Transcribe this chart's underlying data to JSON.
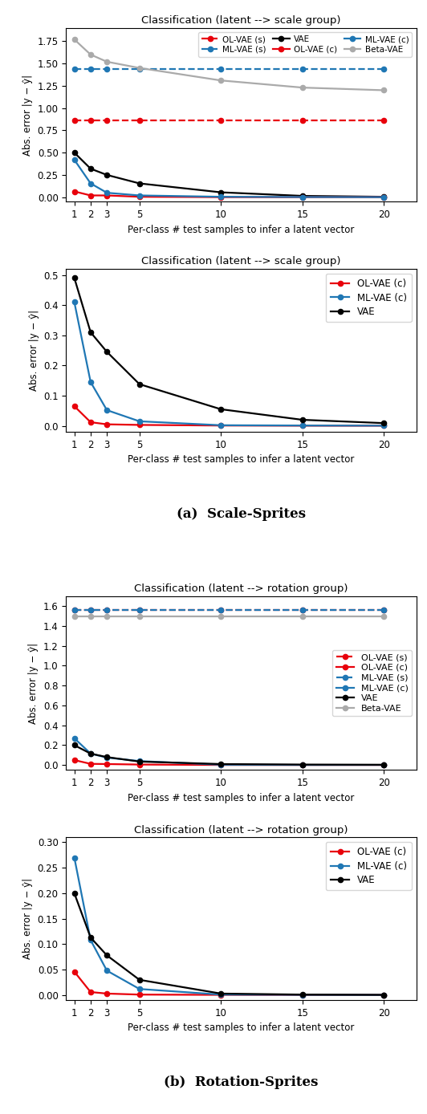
{
  "x": [
    1,
    2,
    3,
    5,
    10,
    15,
    20
  ],
  "plot1": {
    "title": "Classification (latent --> scale group)",
    "ylabel": "Abs. error |y − ŷ|",
    "xlabel": "Per-class # test samples to infer a latent vector",
    "ylim": [
      -0.05,
      1.9
    ],
    "yticks": [
      0.0,
      0.25,
      0.5,
      0.75,
      1.0,
      1.25,
      1.5,
      1.75
    ],
    "series": {
      "OL-VAE (s)": {
        "color": "#e8000b",
        "linestyle": "dashed",
        "marker": "o",
        "data": [
          0.86,
          0.86,
          0.86,
          0.86,
          0.86,
          0.86,
          0.86
        ]
      },
      "OL-VAE (c)": {
        "color": "#e8000b",
        "linestyle": "solid",
        "marker": "o",
        "data": [
          0.065,
          0.02,
          0.02,
          0.005,
          0.001,
          0.001,
          0.001
        ]
      },
      "ML-VAE (s)": {
        "color": "#1f77b4",
        "linestyle": "dashed",
        "marker": "o",
        "data": [
          1.44,
          1.44,
          1.44,
          1.44,
          1.44,
          1.44,
          1.44
        ]
      },
      "ML-VAE (c)": {
        "color": "#1f77b4",
        "linestyle": "solid",
        "marker": "o",
        "data": [
          0.42,
          0.155,
          0.05,
          0.02,
          0.005,
          0.002,
          0.001
        ]
      },
      "VAE": {
        "color": "#000000",
        "linestyle": "solid",
        "marker": "o",
        "data": [
          0.5,
          0.32,
          0.25,
          0.155,
          0.055,
          0.015,
          0.005
        ]
      },
      "Beta-VAE": {
        "color": "#aaaaaa",
        "linestyle": "solid",
        "marker": "o",
        "data": [
          1.77,
          1.6,
          1.52,
          1.45,
          1.31,
          1.23,
          1.2
        ]
      }
    },
    "legend_order": [
      "OL-VAE (s)",
      "ML-VAE (s)",
      "VAE",
      "OL-VAE (c)",
      "ML-VAE (c)",
      "Beta-VAE"
    ],
    "legend_ncol": 3,
    "legend_loc": "upper right"
  },
  "plot2": {
    "title": "Classification (latent --> scale group)",
    "ylabel": "Abs. error |y − ŷ|",
    "xlabel": "Per-class # test samples to infer a latent vector",
    "ylim": [
      -0.02,
      0.52
    ],
    "yticks": [
      0.0,
      0.1,
      0.2,
      0.3,
      0.4,
      0.5
    ],
    "series": {
      "OL-VAE (c)": {
        "color": "#e8000b",
        "linestyle": "solid",
        "marker": "o",
        "data": [
          0.065,
          0.012,
          0.005,
          0.003,
          0.001,
          0.0005,
          0.0003
        ]
      },
      "ML-VAE (c)": {
        "color": "#1f77b4",
        "linestyle": "solid",
        "marker": "o",
        "data": [
          0.41,
          0.145,
          0.052,
          0.015,
          0.002,
          0.001,
          0.0005
        ]
      },
      "VAE": {
        "color": "#000000",
        "linestyle": "solid",
        "marker": "o",
        "data": [
          0.49,
          0.31,
          0.245,
          0.138,
          0.055,
          0.02,
          0.009
        ]
      }
    },
    "legend_order": [
      "OL-VAE (c)",
      "ML-VAE (c)",
      "VAE"
    ],
    "legend_ncol": 1,
    "legend_loc": "upper right"
  },
  "subplot_label_a": "(a)  Scale-Sprites",
  "plot3": {
    "title": "Classification (latent --> rotation group)",
    "ylabel": "Abs. error |y − ŷ|",
    "xlabel": "Per-class # test samples to infer a latent vector",
    "ylim": [
      -0.05,
      1.7
    ],
    "yticks": [
      0.0,
      0.2,
      0.4,
      0.6,
      0.8,
      1.0,
      1.2,
      1.4,
      1.6
    ],
    "series": {
      "OL-VAE (s)": {
        "color": "#e8000b",
        "linestyle": "dashed",
        "marker": "o",
        "data": [
          1.56,
          1.56,
          1.56,
          1.56,
          1.56,
          1.56,
          1.56
        ]
      },
      "OL-VAE (c)": {
        "color": "#e8000b",
        "linestyle": "solid",
        "marker": "o",
        "data": [
          0.05,
          0.012,
          0.01,
          0.005,
          0.001,
          0.001,
          0.001
        ]
      },
      "ML-VAE (s)": {
        "color": "#1f77b4",
        "linestyle": "dashed",
        "marker": "o",
        "data": [
          1.565,
          1.565,
          1.565,
          1.565,
          1.565,
          1.565,
          1.565
        ]
      },
      "ML-VAE (c)": {
        "color": "#1f77b4",
        "linestyle": "solid",
        "marker": "o",
        "data": [
          0.27,
          0.115,
          0.075,
          0.04,
          0.003,
          0.001,
          0.001
        ]
      },
      "VAE": {
        "color": "#000000",
        "linestyle": "solid",
        "marker": "o",
        "data": [
          0.2,
          0.115,
          0.08,
          0.035,
          0.01,
          0.005,
          0.003
        ]
      },
      "Beta-VAE": {
        "color": "#aaaaaa",
        "linestyle": "solid",
        "marker": "o",
        "data": [
          1.5,
          1.5,
          1.5,
          1.5,
          1.5,
          1.5,
          1.5
        ]
      }
    },
    "legend_order": [
      "OL-VAE (s)",
      "OL-VAE (c)",
      "ML-VAE (s)",
      "ML-VAE (c)",
      "VAE",
      "Beta-VAE"
    ],
    "legend_ncol": 1,
    "legend_loc": "center right"
  },
  "plot4": {
    "title": "Classification (latent --> rotation group)",
    "ylabel": "Abs. error |y − ŷ|",
    "xlabel": "Per-class # test samples to infer a latent vector",
    "ylim": [
      -0.01,
      0.31
    ],
    "yticks": [
      0.0,
      0.05,
      0.1,
      0.15,
      0.2,
      0.25,
      0.3
    ],
    "series": {
      "OL-VAE (c)": {
        "color": "#e8000b",
        "linestyle": "solid",
        "marker": "o",
        "data": [
          0.046,
          0.006,
          0.003,
          0.001,
          0.0005,
          0.0003,
          0.0002
        ]
      },
      "ML-VAE (c)": {
        "color": "#1f77b4",
        "linestyle": "solid",
        "marker": "o",
        "data": [
          0.27,
          0.108,
          0.048,
          0.012,
          0.001,
          0.0005,
          0.0003
        ]
      },
      "VAE": {
        "color": "#000000",
        "linestyle": "solid",
        "marker": "o",
        "data": [
          0.2,
          0.113,
          0.078,
          0.03,
          0.003,
          0.001,
          0.0005
        ]
      }
    },
    "legend_order": [
      "OL-VAE (c)",
      "ML-VAE (c)",
      "VAE"
    ],
    "legend_ncol": 1,
    "legend_loc": "upper right"
  },
  "subplot_label_b": "(b)  Rotation-Sprites"
}
